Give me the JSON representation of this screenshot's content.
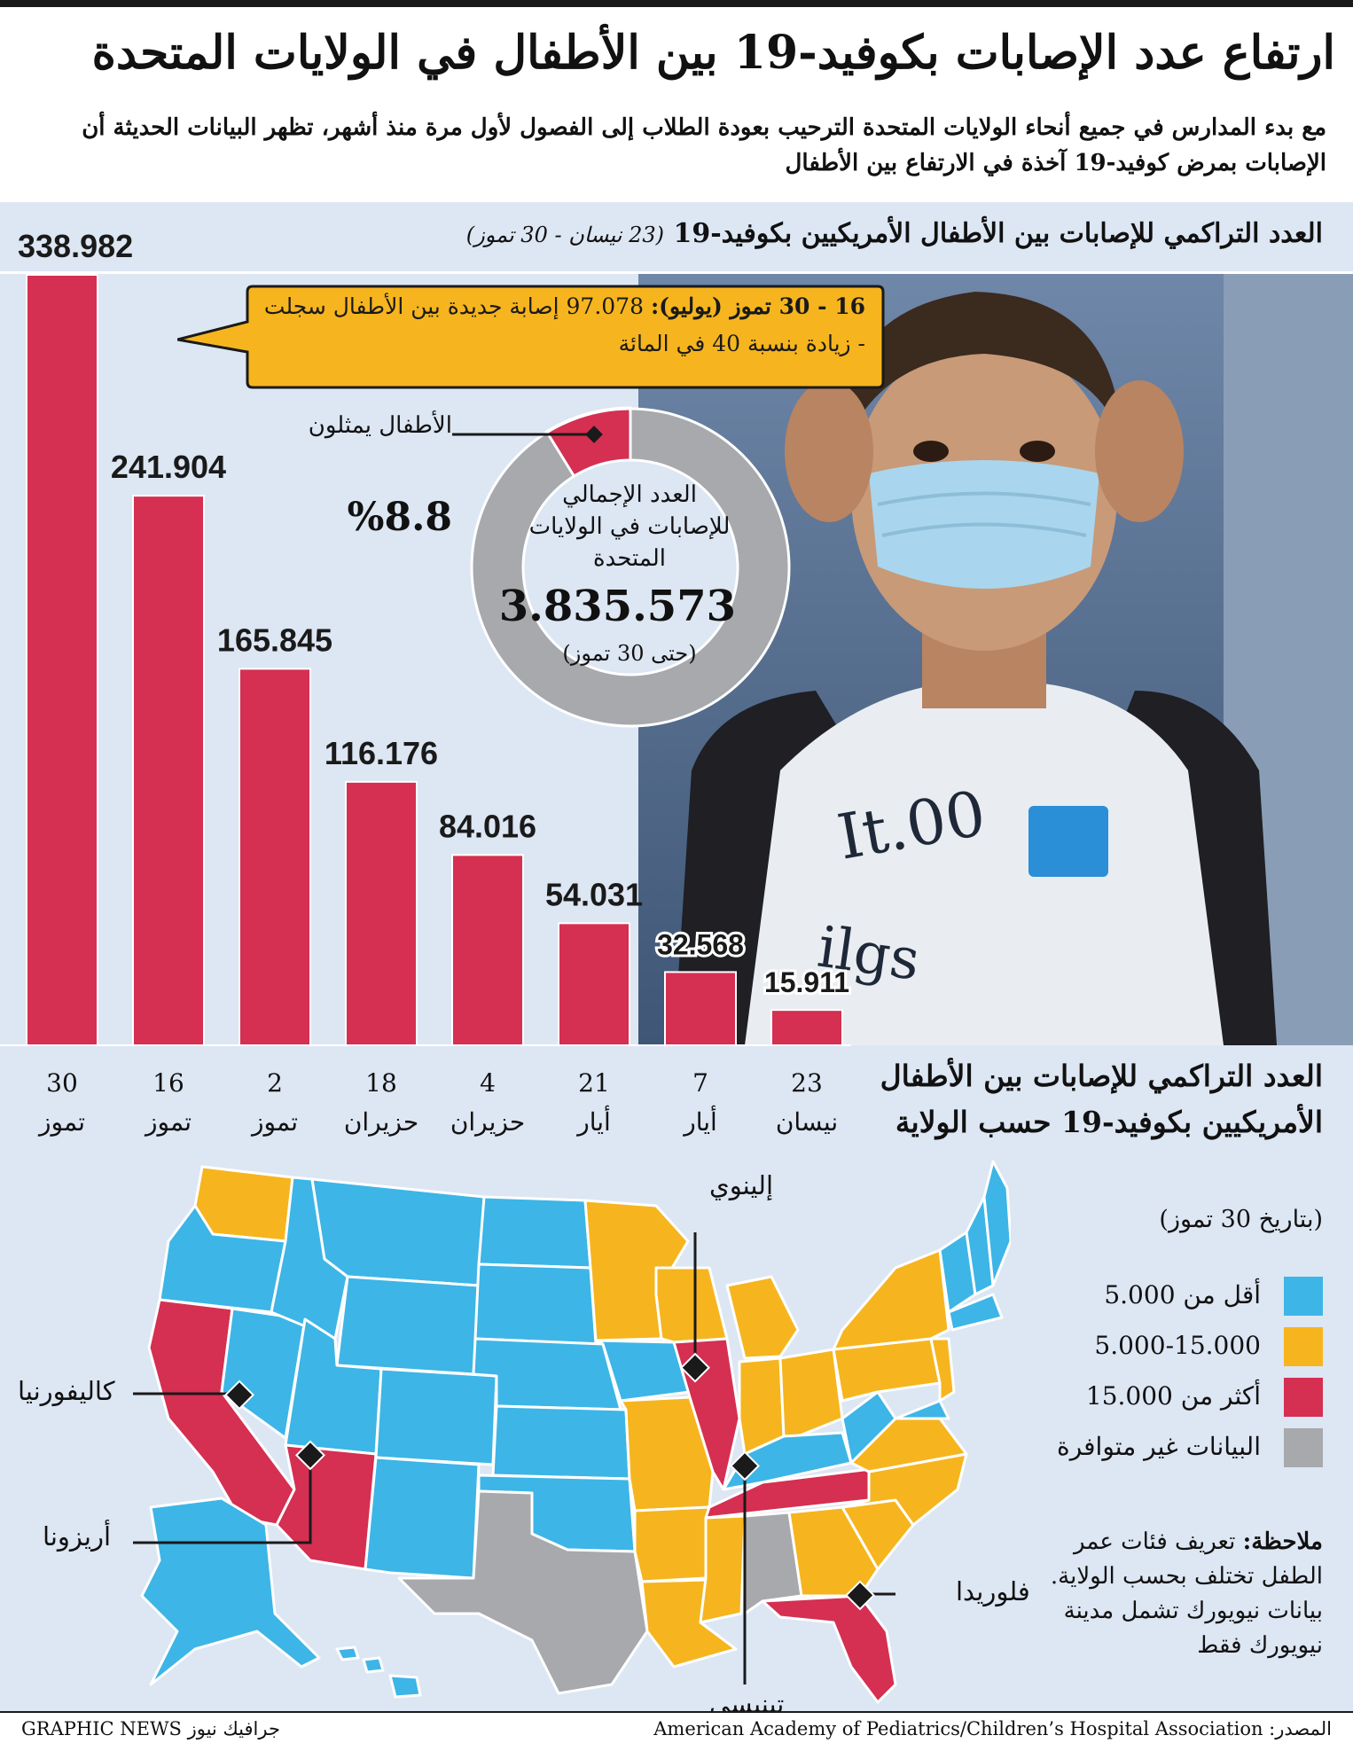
{
  "title": "ارتفاع عدد الإصابات بكوفيد-19 بين الأطفال في الولايات المتحدة",
  "subtitle": "مع بدء المدارس في جميع أنحاء الولايات المتحدة الترحيب بعودة الطلاب إلى الفصول لأول مرة منذ أشهر، تظهر البيانات الحديثة أن الإصابات بمرض كوفيد-19 آخذة في الارتفاع بين الأطفال",
  "chart_heading": "العدد التراكمي للإصابات بين الأطفال الأمريكيين بكوفيد-19",
  "chart_heading_dates": "(23 نيسان - 30 تموز)",
  "callout": {
    "bold": "16 - 30 تموز (يوليو):",
    "text": "97.078 إصابة جديدة بين الأطفال سجلت - زيادة بنسبة 40 في المائة"
  },
  "donut": {
    "center_label": "العدد الإجمالي للإصابات في الولايات المتحدة",
    "total": "3.835.573",
    "date": "(حتى 30 تموز)",
    "kids_label": "الأطفال يمثلون",
    "kids_pct": "%8.8",
    "kids_share": 0.088,
    "colors": {
      "kids": "#d52f52",
      "rest": "#a7a9ac"
    }
  },
  "chart_data": {
    "type": "bar",
    "categories": [
      "30 تموز",
      "16 تموز",
      "2 تموز",
      "18 حزيران",
      "4 حزيران",
      "21 أيار",
      "7 أيار",
      "23 نيسان"
    ],
    "category_lines": [
      [
        "30",
        "تموز"
      ],
      [
        "16",
        "تموز"
      ],
      [
        "2",
        "تموز"
      ],
      [
        "18",
        "حزيران"
      ],
      [
        "4",
        "حزيران"
      ],
      [
        "21",
        "أيار"
      ],
      [
        "7",
        "أيار"
      ],
      [
        "23",
        "نيسان"
      ]
    ],
    "values": [
      338982,
      241904,
      165845,
      116176,
      84016,
      54031,
      32568,
      15911
    ],
    "value_labels": [
      "338.982",
      "241.904",
      "165.845",
      "116.176",
      "84.016",
      "54.031",
      "32.568",
      "15.911"
    ],
    "ylim": [
      0,
      338982
    ],
    "bar_color": "#d52f52"
  },
  "map": {
    "title": "العدد التراكمي للإصابات بين الأطفال الأمريكيين بكوفيد-19 حسب الولاية",
    "date": "(بتاريخ 30 تموز)",
    "legend": [
      {
        "label": "أقل من 5.000",
        "color": "#3db5e6"
      },
      {
        "label": "5.000-15.000",
        "color": "#f6b51e"
      },
      {
        "label": "أكثر من 15.000",
        "color": "#d52f52"
      },
      {
        "label": "البيانات غير متوافرة",
        "color": "#a7a9ac"
      }
    ],
    "labels": {
      "illinois": "إلينوي",
      "california": "كاليفورنيا",
      "arizona": "أريزونا",
      "florida": "فلوريدا",
      "tennessee": "تينيسي"
    },
    "note_bold": "ملاحظة:",
    "note": "تعريف فئات عمر الطفل تختلف بحسب الولاية. بيانات نيويورك تشمل مدينة نيويورك فقط"
  },
  "footer": {
    "source_label": "المصدر:",
    "source": "American Academy of Pediatrics/Children’s Hospital Association",
    "brand": "جرافيك نيوز GRAPHIC NEWS"
  }
}
